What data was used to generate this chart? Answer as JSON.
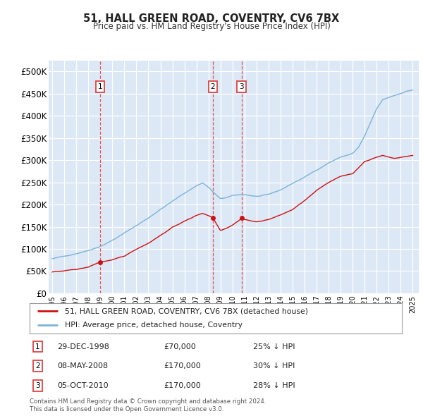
{
  "title": "51, HALL GREEN ROAD, COVENTRY, CV6 7BX",
  "subtitle": "Price paid vs. HM Land Registry's House Price Index (HPI)",
  "ylim": [
    0,
    525000
  ],
  "yticks": [
    0,
    50000,
    100000,
    150000,
    200000,
    250000,
    300000,
    350000,
    400000,
    450000,
    500000
  ],
  "ytick_labels": [
    "£0",
    "£50K",
    "£100K",
    "£150K",
    "£200K",
    "£250K",
    "£300K",
    "£350K",
    "£400K",
    "£450K",
    "£500K"
  ],
  "plot_bg": "#dce8f5",
  "grid_color": "#ffffff",
  "hpi_color": "#7ab3d9",
  "price_color": "#cc1111",
  "dashed_color": "#dd4444",
  "transactions": [
    {
      "date": 1998.99,
      "price": 70000,
      "label": "1"
    },
    {
      "date": 2008.37,
      "price": 170000,
      "label": "2"
    },
    {
      "date": 2010.75,
      "price": 170000,
      "label": "3"
    }
  ],
  "legend_entries": [
    "51, HALL GREEN ROAD, COVENTRY, CV6 7BX (detached house)",
    "HPI: Average price, detached house, Coventry"
  ],
  "table_rows": [
    {
      "num": "1",
      "date": "29-DEC-1998",
      "price": "£70,000",
      "pct": "25% ↓ HPI"
    },
    {
      "num": "2",
      "date": "08-MAY-2008",
      "price": "£170,000",
      "pct": "30% ↓ HPI"
    },
    {
      "num": "3",
      "date": "05-OCT-2010",
      "price": "£170,000",
      "pct": "28% ↓ HPI"
    }
  ],
  "footnote": "Contains HM Land Registry data © Crown copyright and database right 2024.\nThis data is licensed under the Open Government Licence v3.0.",
  "hpi_keypoints_x": [
    1995,
    1996,
    1997,
    1998,
    1999,
    2000,
    2001,
    2002,
    2003,
    2004,
    2005,
    2006,
    2007,
    2007.5,
    2008,
    2008.5,
    2009,
    2009.5,
    2010,
    2011,
    2012,
    2013,
    2014,
    2015,
    2016,
    2017,
    2018,
    2019,
    2020,
    2020.5,
    2021,
    2021.5,
    2022,
    2022.5,
    2023,
    2023.5,
    2024,
    2024.5,
    2025
  ],
  "hpi_keypoints_y": [
    78000,
    83000,
    90000,
    98000,
    108000,
    122000,
    138000,
    155000,
    172000,
    192000,
    210000,
    228000,
    245000,
    252000,
    242000,
    228000,
    215000,
    218000,
    222000,
    224000,
    220000,
    223000,
    233000,
    248000,
    262000,
    278000,
    295000,
    308000,
    316000,
    330000,
    355000,
    385000,
    415000,
    435000,
    440000,
    445000,
    450000,
    455000,
    458000
  ],
  "price_keypoints_x": [
    1995,
    1996,
    1997,
    1998,
    1998.99,
    1999.5,
    2000,
    2001,
    2002,
    2003,
    2004,
    2005,
    2006,
    2006.5,
    2007,
    2007.5,
    2008,
    2008.37,
    2008.7,
    2009,
    2009.5,
    2010,
    2010.75,
    2011,
    2011.5,
    2012,
    2013,
    2014,
    2015,
    2016,
    2017,
    2018,
    2019,
    2020,
    2021,
    2022,
    2022.5,
    2023,
    2023.5,
    2024,
    2024.5,
    2025
  ],
  "price_keypoints_y": [
    48000,
    50000,
    53000,
    58000,
    70000,
    72000,
    74000,
    82000,
    98000,
    112000,
    130000,
    148000,
    162000,
    168000,
    175000,
    180000,
    175000,
    170000,
    155000,
    142000,
    148000,
    155000,
    170000,
    168000,
    165000,
    162000,
    168000,
    178000,
    190000,
    210000,
    232000,
    250000,
    265000,
    270000,
    298000,
    308000,
    312000,
    308000,
    305000,
    308000,
    310000,
    312000
  ]
}
